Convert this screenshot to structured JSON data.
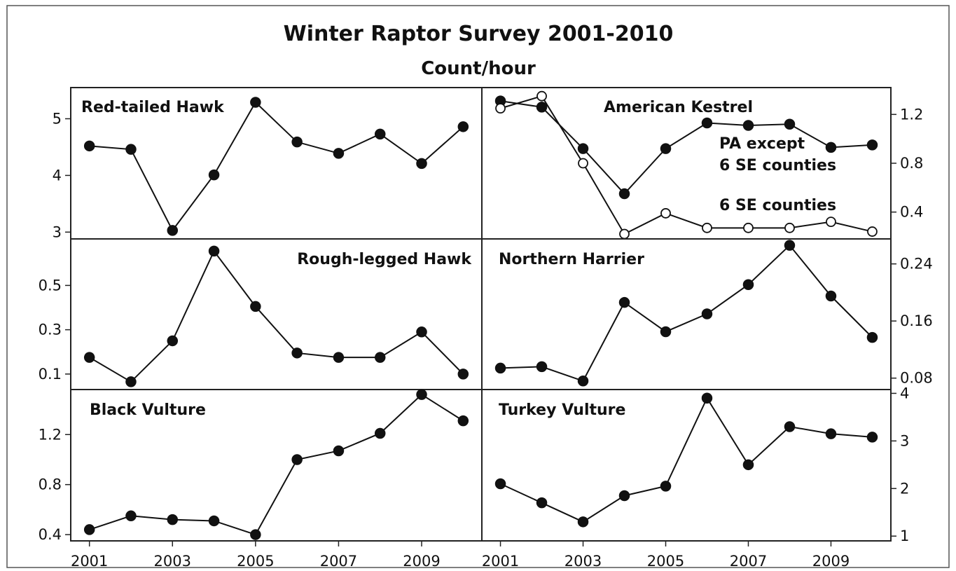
{
  "title": "Winter Raptor Survey 2001-2010",
  "subtitle": "Count/hour",
  "chart_data": [
    {
      "type": "line",
      "title": "Red-tailed Hawk",
      "x": [
        2001,
        2002,
        2003,
        2004,
        2005,
        2006,
        2007,
        2008,
        2009,
        2010
      ],
      "series": [
        {
          "values": [
            4.52,
            4.46,
            3.03,
            4.01,
            5.29,
            4.59,
            4.39,
            4.73,
            4.21,
            4.86
          ]
        }
      ],
      "ylim": [
        2.88,
        5.55
      ],
      "yticks": [
        3,
        4,
        5
      ],
      "ytick_labels": [
        "3",
        "4",
        "5"
      ],
      "y_axis_side": "left"
    },
    {
      "type": "line",
      "title": "American Kestrel",
      "x": [
        2001,
        2002,
        2003,
        2004,
        2005,
        2006,
        2007,
        2008,
        2009,
        2010
      ],
      "series": [
        {
          "name": "PA except 6 SE counties",
          "marker": "filled",
          "values": [
            1.31,
            1.26,
            0.92,
            0.55,
            0.92,
            1.13,
            1.11,
            1.12,
            0.93,
            0.95
          ]
        },
        {
          "name": "6 SE counties",
          "marker": "open",
          "values": [
            1.25,
            1.35,
            0.8,
            0.22,
            0.39,
            0.27,
            0.27,
            0.27,
            0.32,
            0.24
          ]
        }
      ],
      "ylim": [
        0.18,
        1.42
      ],
      "yticks": [
        0.4,
        0.8,
        1.2
      ],
      "ytick_labels": [
        "0.4",
        "0.8",
        "1.2"
      ],
      "y_axis_side": "right",
      "annotations": [
        "PA except",
        "6 SE counties",
        "6 SE counties"
      ]
    },
    {
      "type": "line",
      "title": "Rough-legged Hawk",
      "x": [
        2001,
        2002,
        2003,
        2004,
        2005,
        2006,
        2007,
        2008,
        2009,
        2010
      ],
      "series": [
        {
          "values": [
            0.175,
            0.065,
            0.25,
            0.655,
            0.405,
            0.195,
            0.175,
            0.175,
            0.29,
            0.1
          ]
        }
      ],
      "ylim": [
        0.03,
        0.71
      ],
      "yticks": [
        0.1,
        0.3,
        0.5
      ],
      "ytick_labels": [
        "0.1",
        "0.3",
        "0.5"
      ],
      "y_axis_side": "left"
    },
    {
      "type": "line",
      "title": "Northern Harrier",
      "x": [
        2001,
        2002,
        2003,
        2004,
        2005,
        2006,
        2007,
        2008,
        2009,
        2010
      ],
      "series": [
        {
          "values": [
            0.094,
            0.096,
            0.076,
            0.186,
            0.145,
            0.17,
            0.211,
            0.266,
            0.195,
            0.137
          ]
        }
      ],
      "ylim": [
        0.064,
        0.275
      ],
      "yticks": [
        0.08,
        0.16,
        0.24
      ],
      "ytick_labels": [
        "0.08",
        "0.16",
        "0.24"
      ],
      "y_axis_side": "right"
    },
    {
      "type": "line",
      "title": "Black Vulture",
      "x": [
        2001,
        2002,
        2003,
        2004,
        2005,
        2006,
        2007,
        2008,
        2009,
        2010
      ],
      "series": [
        {
          "values": [
            0.44,
            0.55,
            0.52,
            0.51,
            0.4,
            1.0,
            1.07,
            1.21,
            1.52,
            1.31
          ]
        }
      ],
      "ylim": [
        0.35,
        1.56
      ],
      "yticks": [
        0.4,
        0.8,
        1.2
      ],
      "ytick_labels": [
        "0.4",
        "0.8",
        "1.2"
      ],
      "y_axis_side": "left"
    },
    {
      "type": "line",
      "title": "Turkey Vulture",
      "x": [
        2001,
        2002,
        2003,
        2004,
        2005,
        2006,
        2007,
        2008,
        2009,
        2010
      ],
      "series": [
        {
          "values": [
            2.1,
            1.7,
            1.3,
            1.85,
            2.05,
            3.9,
            2.5,
            3.3,
            3.15,
            3.08
          ]
        }
      ],
      "ylim": [
        0.9,
        4.08
      ],
      "yticks": [
        1,
        2,
        3,
        4
      ],
      "ytick_labels": [
        "1",
        "2",
        "3",
        "4"
      ],
      "y_axis_side": "right"
    }
  ],
  "x_ticks": [
    2001,
    2003,
    2005,
    2007,
    2009
  ],
  "x_tick_labels": [
    "2001",
    "2003",
    "2005",
    "2007",
    "2009"
  ]
}
